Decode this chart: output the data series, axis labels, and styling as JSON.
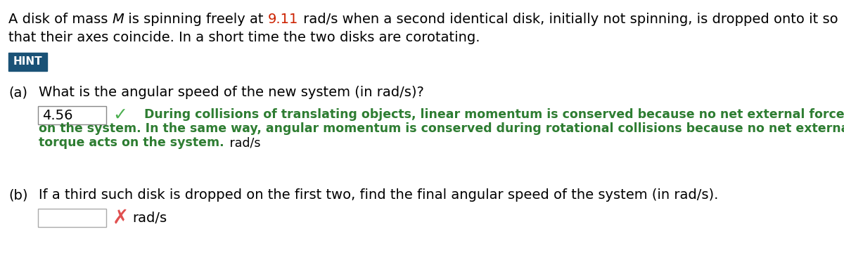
{
  "background_color": "#ffffff",
  "hint_bg": "#1a5276",
  "hint_text_color": "#ffffff",
  "hint_text": "HINT",
  "part_a_answer": "4.56",
  "hint_color": "#2e7d32",
  "checkmark_color": "#4caf50",
  "part_b_suffix": "rad/s",
  "x_color": "#e05050",
  "font_size": 14,
  "small_font_size": 12.5
}
